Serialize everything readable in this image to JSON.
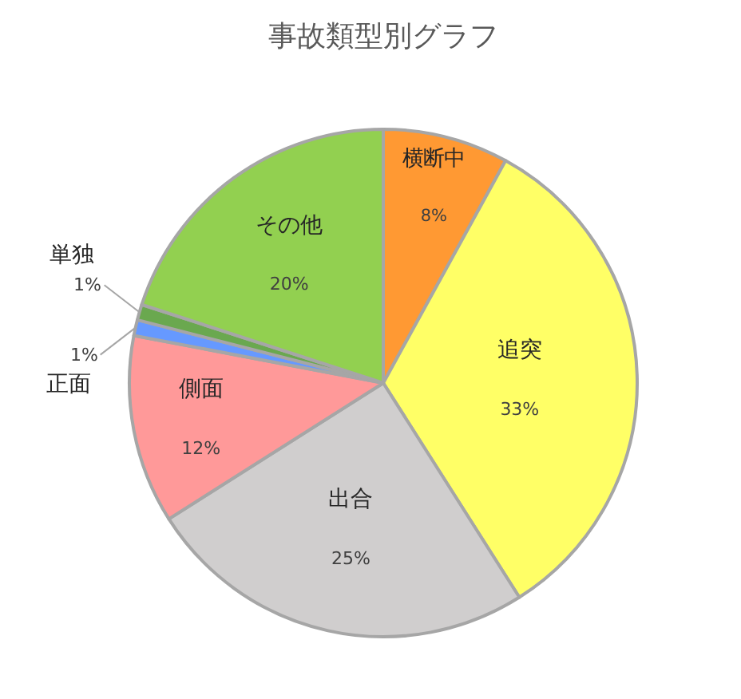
{
  "chart_data": {
    "type": "pie",
    "title": "事故類型別グラフ",
    "categories": [
      "横断中",
      "追突",
      "出合",
      "側面",
      "正面",
      "単独",
      "その他"
    ],
    "values": [
      8,
      33,
      25,
      12,
      1,
      1,
      20
    ],
    "value_labels": [
      "8%",
      "33%",
      "25%",
      "12%",
      "1%",
      "1%",
      "20%"
    ],
    "colors": [
      "#ff9933",
      "#ffff66",
      "#d0cece",
      "#ff9999",
      "#6699ff",
      "#6aa84f",
      "#92d050"
    ],
    "legend": false
  }
}
